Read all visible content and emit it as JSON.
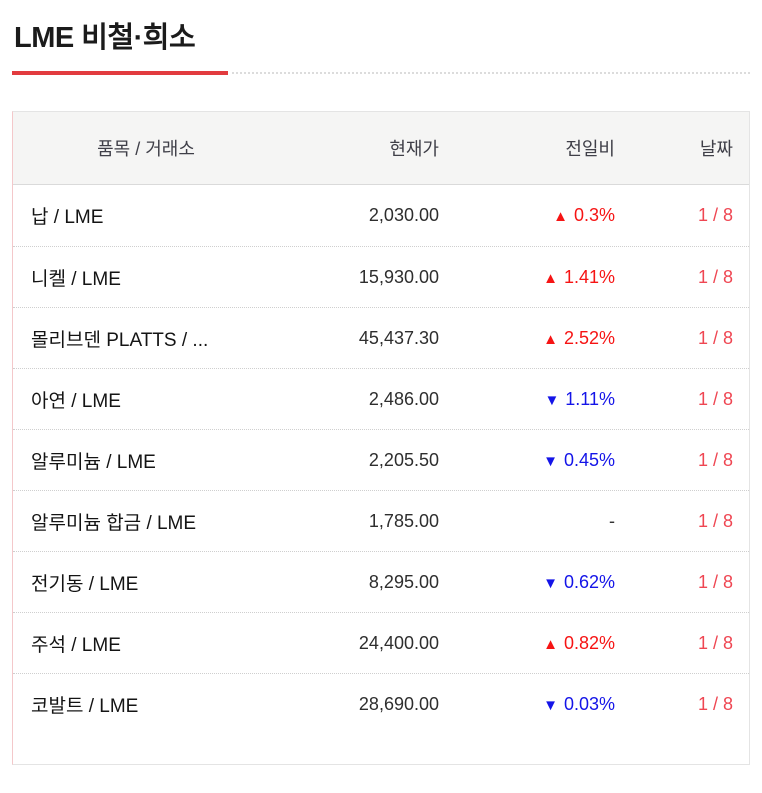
{
  "page": {
    "title": "LME 비철·희소"
  },
  "colors": {
    "accent_red": "#e23b3f",
    "up_red": "#f61414",
    "down_blue": "#1414e8",
    "date_red": "#ef4652",
    "header_bg": "#f5f5f4",
    "table_border": "#e4e4e4"
  },
  "icons": {
    "up_arrow": "▲",
    "down_arrow": "▼"
  },
  "table": {
    "headers": {
      "item": "품목 / 거래소",
      "price": "현재가",
      "change": "전일비",
      "date": "날짜"
    },
    "rows": [
      {
        "item": "납 / LME",
        "price": "2,030.00",
        "direction": "up",
        "change": "0.3%",
        "date": "1 / 8"
      },
      {
        "item": "니켈 / LME",
        "price": "15,930.00",
        "direction": "up",
        "change": "1.41%",
        "date": "1 / 8"
      },
      {
        "item": "몰리브덴 PLATTS / ...",
        "price": "45,437.30",
        "direction": "up",
        "change": "2.52%",
        "date": "1 / 8"
      },
      {
        "item": "아연 / LME",
        "price": "2,486.00",
        "direction": "down",
        "change": "1.11%",
        "date": "1 / 8"
      },
      {
        "item": "알루미늄 / LME",
        "price": "2,205.50",
        "direction": "down",
        "change": "0.45%",
        "date": "1 / 8"
      },
      {
        "item": "알루미늄 합금 / LME",
        "price": "1,785.00",
        "direction": "flat",
        "change": "-",
        "date": "1 / 8"
      },
      {
        "item": "전기동 / LME",
        "price": "8,295.00",
        "direction": "down",
        "change": "0.62%",
        "date": "1 / 8"
      },
      {
        "item": "주석 / LME",
        "price": "24,400.00",
        "direction": "up",
        "change": "0.82%",
        "date": "1 / 8"
      },
      {
        "item": "코발트 / LME",
        "price": "28,690.00",
        "direction": "down",
        "change": "0.03%",
        "date": "1 / 8"
      }
    ]
  }
}
